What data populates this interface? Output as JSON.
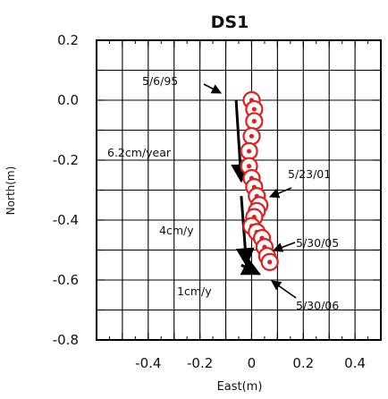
{
  "chart_data": {
    "type": "scatter",
    "title": "DS1",
    "xlabel": "East(m)",
    "ylabel": "North(m)",
    "xlim": [
      -0.6,
      0.5
    ],
    "ylim": [
      -0.8,
      0.2
    ],
    "x_ticks": [
      -0.4,
      -0.2,
      0,
      0.2,
      0.4
    ],
    "x_tick_labels": [
      "-0.4",
      "-0.2",
      "0",
      "0.2",
      "0.4"
    ],
    "y_ticks": [
      0.2,
      0.0,
      -0.2,
      -0.4,
      -0.6,
      -0.8
    ],
    "y_tick_labels": [
      "0.2",
      "0.0",
      "-0.2",
      "-0.4",
      "-0.6",
      "-0.8"
    ],
    "grid": true,
    "points": {
      "x": [
        0.0,
        0.01,
        0.01,
        0.0,
        -0.01,
        -0.01,
        0.0,
        0.01,
        0.02,
        0.03,
        0.02,
        0.01,
        0.0,
        0.02,
        0.04,
        0.05,
        0.06,
        0.07
      ],
      "y": [
        0.0,
        -0.03,
        -0.07,
        -0.12,
        -0.17,
        -0.22,
        -0.26,
        -0.29,
        -0.32,
        -0.35,
        -0.37,
        -0.39,
        -0.42,
        -0.44,
        -0.46,
        -0.49,
        -0.52,
        -0.54
      ],
      "marker": "open-circle",
      "color": "#e02020"
    },
    "arrows": [
      {
        "x1": -0.06,
        "y1": 0.0,
        "x2": -0.04,
        "y2": -0.27
      },
      {
        "x1": -0.04,
        "y1": -0.32,
        "x2": -0.02,
        "y2": -0.55
      },
      {
        "x1": -0.04,
        "y1": -0.55,
        "x2": 0.03,
        "y2": -0.58
      }
    ],
    "annotations": {
      "date_1": "5/6/95",
      "date_2": "5/23/01",
      "date_3": "5/30/05",
      "date_4": "5/30/06",
      "rate_1": "6.2cm/year",
      "rate_2": "4cm/y",
      "rate_3": "1cm/y"
    }
  }
}
